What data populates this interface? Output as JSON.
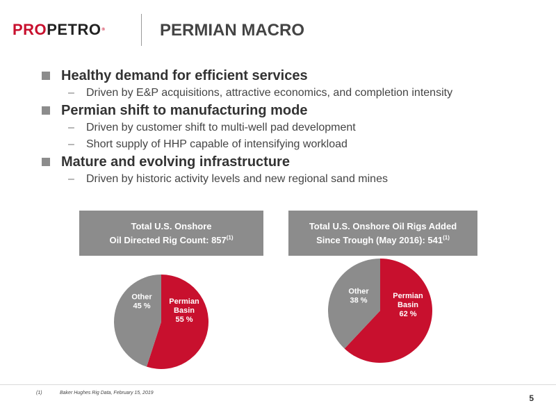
{
  "header": {
    "logo_part1": "PRO",
    "logo_part2": "PETRO",
    "logo_mark": "®",
    "title": "PERMIAN MACRO"
  },
  "bullets": [
    {
      "text": "Healthy demand for efficient services",
      "subs": [
        "Driven by E&P acquisitions, attractive economics, and completion intensity"
      ]
    },
    {
      "text": "Permian shift to manufacturing mode",
      "subs": [
        "Driven by customer shift to multi-well pad development",
        "Short supply of HHP capable of intensifying workload"
      ]
    },
    {
      "text": "Mature and evolving infrastructure",
      "subs": [
        "Driven by historic activity levels and new regional sand mines"
      ]
    }
  ],
  "dash_symbol": "–",
  "charts": {
    "left": {
      "header_line1": "Total U.S. Onshore",
      "header_line2": "Oil Directed Rig Count: 857",
      "header_sup": "(1)"
    },
    "right": {
      "header_line1": "Total U.S. Onshore Oil Rigs Added",
      "header_line2": "Since Trough (May 2016): 541",
      "header_sup": "(1)"
    }
  },
  "chart_data": [
    {
      "type": "pie",
      "title": "Total U.S. Onshore Oil Directed Rig Count: 857(1)",
      "slices": [
        {
          "label": [
            "Permian",
            "Basin",
            "55 %"
          ],
          "value": 55,
          "color": "#c8102e"
        },
        {
          "label": [
            "Other",
            "45 %"
          ],
          "value": 45,
          "color": "#8c8c8c"
        }
      ]
    },
    {
      "type": "pie",
      "title": "Total U.S. Onshore Oil Rigs Added Since Trough (May 2016): 541(1)",
      "slices": [
        {
          "label": [
            "Permian",
            "Basin",
            "62 %"
          ],
          "value": 62,
          "color": "#c8102e"
        },
        {
          "label": [
            "Other",
            "38 %"
          ],
          "value": 38,
          "color": "#8c8c8c"
        }
      ]
    }
  ],
  "footnote": {
    "number": "(1)",
    "text": "Baker Hughes Rig Data, February 15, 2019"
  },
  "page_number": "5"
}
